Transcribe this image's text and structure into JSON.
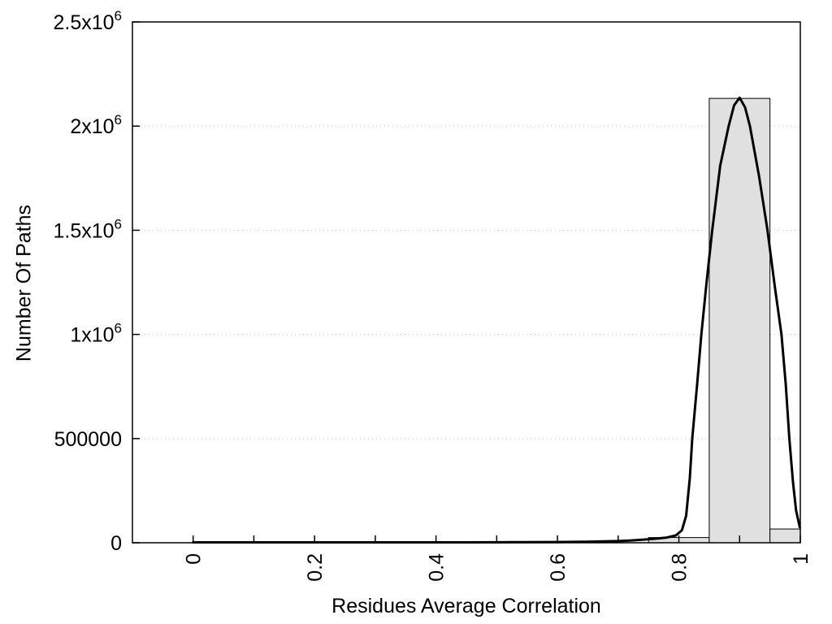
{
  "chart_data": {
    "type": "bar",
    "subtype": "histogram-with-fitted-curve",
    "title": "",
    "xlabel": "Residues Average Correlation",
    "ylabel": "Number Of Paths",
    "xlim": [
      -0.1,
      1.0
    ],
    "ylim": [
      0,
      2500000
    ],
    "grid": "horizontal-dotted-at-major-y-ticks",
    "legend": "none",
    "colors": {
      "bar_fill": "#e0e0e0",
      "bar_border": "#000000",
      "curve": "#000000",
      "grid_line": "#c8c8c8",
      "axis": "#000000",
      "background": "#ffffff"
    },
    "y_ticks": [
      {
        "value": 0,
        "main": "0",
        "exp": ""
      },
      {
        "value": 500000,
        "main": "500000",
        "exp": ""
      },
      {
        "value": 1000000,
        "main": "1x10",
        "exp": "6"
      },
      {
        "value": 1500000,
        "main": "1.5x10",
        "exp": "6"
      },
      {
        "value": 2000000,
        "main": "2x10",
        "exp": "6"
      },
      {
        "value": 2500000,
        "main": "2.5x10",
        "exp": "6"
      }
    ],
    "x_ticks": {
      "minor_step": 0.1,
      "tick_range": [
        0,
        1
      ],
      "labeled": [
        {
          "value": 0,
          "label": "0"
        },
        {
          "value": 0.2,
          "label": "0.2"
        },
        {
          "value": 0.4,
          "label": "0.4"
        },
        {
          "value": 0.6,
          "label": "0.6"
        },
        {
          "value": 0.8,
          "label": "0.8"
        },
        {
          "value": 1,
          "label": "1"
        }
      ]
    },
    "bars": [
      {
        "x0": 0.75,
        "x1": 0.85,
        "value": 25000
      },
      {
        "x0": 0.85,
        "x1": 0.95,
        "value": 2133000
      },
      {
        "x0": 0.95,
        "x1": 1.0,
        "value": 66000
      }
    ],
    "curve": {
      "stroke_width": 3,
      "points": [
        [
          0.0,
          2000
        ],
        [
          0.05,
          2000
        ],
        [
          0.1,
          2000
        ],
        [
          0.15,
          2000
        ],
        [
          0.2,
          2000
        ],
        [
          0.25,
          2000
        ],
        [
          0.3,
          2000
        ],
        [
          0.35,
          2000
        ],
        [
          0.4,
          2000
        ],
        [
          0.45,
          2000
        ],
        [
          0.5,
          2500
        ],
        [
          0.55,
          3000
        ],
        [
          0.6,
          3500
        ],
        [
          0.65,
          5000
        ],
        [
          0.7,
          8000
        ],
        [
          0.72,
          11000
        ],
        [
          0.74,
          15000
        ],
        [
          0.76,
          19000
        ],
        [
          0.78,
          25000
        ],
        [
          0.795,
          35000
        ],
        [
          0.805,
          60000
        ],
        [
          0.812,
          130000
        ],
        [
          0.818,
          310000
        ],
        [
          0.822,
          500000
        ],
        [
          0.83,
          760000
        ],
        [
          0.837,
          1000000
        ],
        [
          0.846,
          1260000
        ],
        [
          0.855,
          1500000
        ],
        [
          0.868,
          1810000
        ],
        [
          0.882,
          2000000
        ],
        [
          0.891,
          2100000
        ],
        [
          0.9,
          2136000
        ],
        [
          0.909,
          2090000
        ],
        [
          0.917,
          2000000
        ],
        [
          0.932,
          1760000
        ],
        [
          0.946,
          1500000
        ],
        [
          0.958,
          1230000
        ],
        [
          0.969,
          1000000
        ],
        [
          0.976,
          760000
        ],
        [
          0.982,
          500000
        ],
        [
          0.988,
          290000
        ],
        [
          0.993,
          155000
        ],
        [
          0.999,
          75000
        ]
      ]
    }
  }
}
